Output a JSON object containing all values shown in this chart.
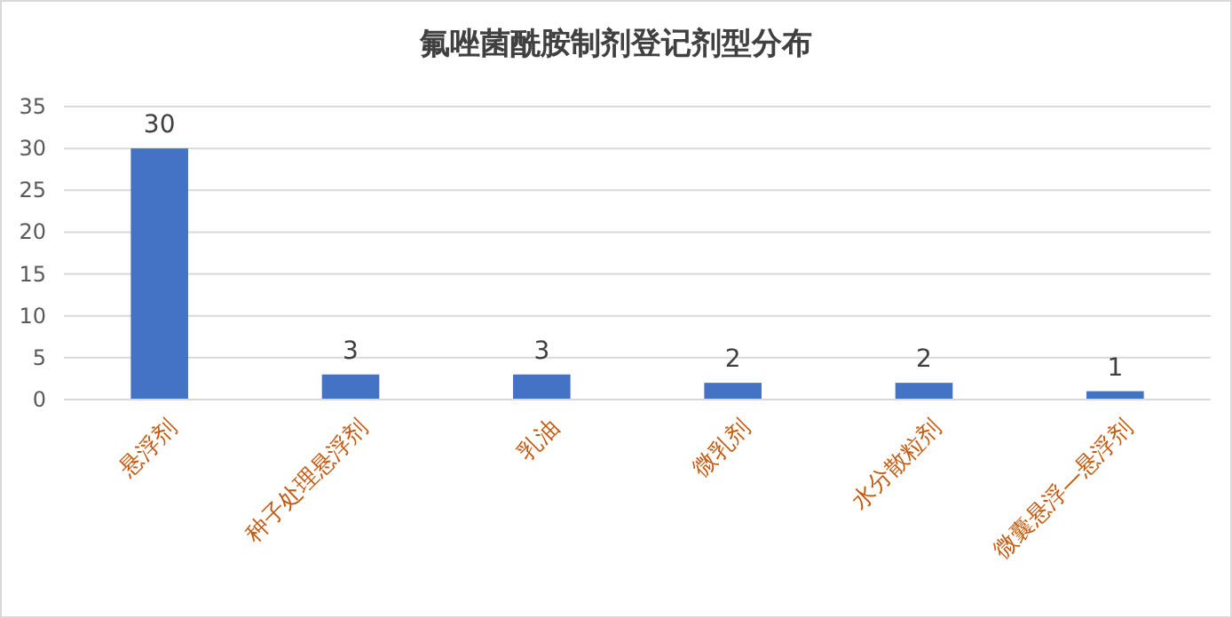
{
  "chart_data": {
    "type": "bar",
    "title": "氟唑菌酰胺制剂登记剂型分布",
    "categories": [
      "悬浮剂",
      "种子处理悬浮剂",
      "乳油",
      "微乳剂",
      "水分散粒剂",
      "微囊悬浮—悬浮剂"
    ],
    "series": [
      {
        "color": "#4472c4",
        "values": [
          30,
          3,
          3,
          2,
          2,
          1
        ]
      }
    ],
    "ylim": [
      0,
      35
    ],
    "yticks": [
      0,
      5,
      10,
      15,
      20,
      25,
      30,
      35
    ],
    "grid": "y",
    "data_labels": true
  }
}
